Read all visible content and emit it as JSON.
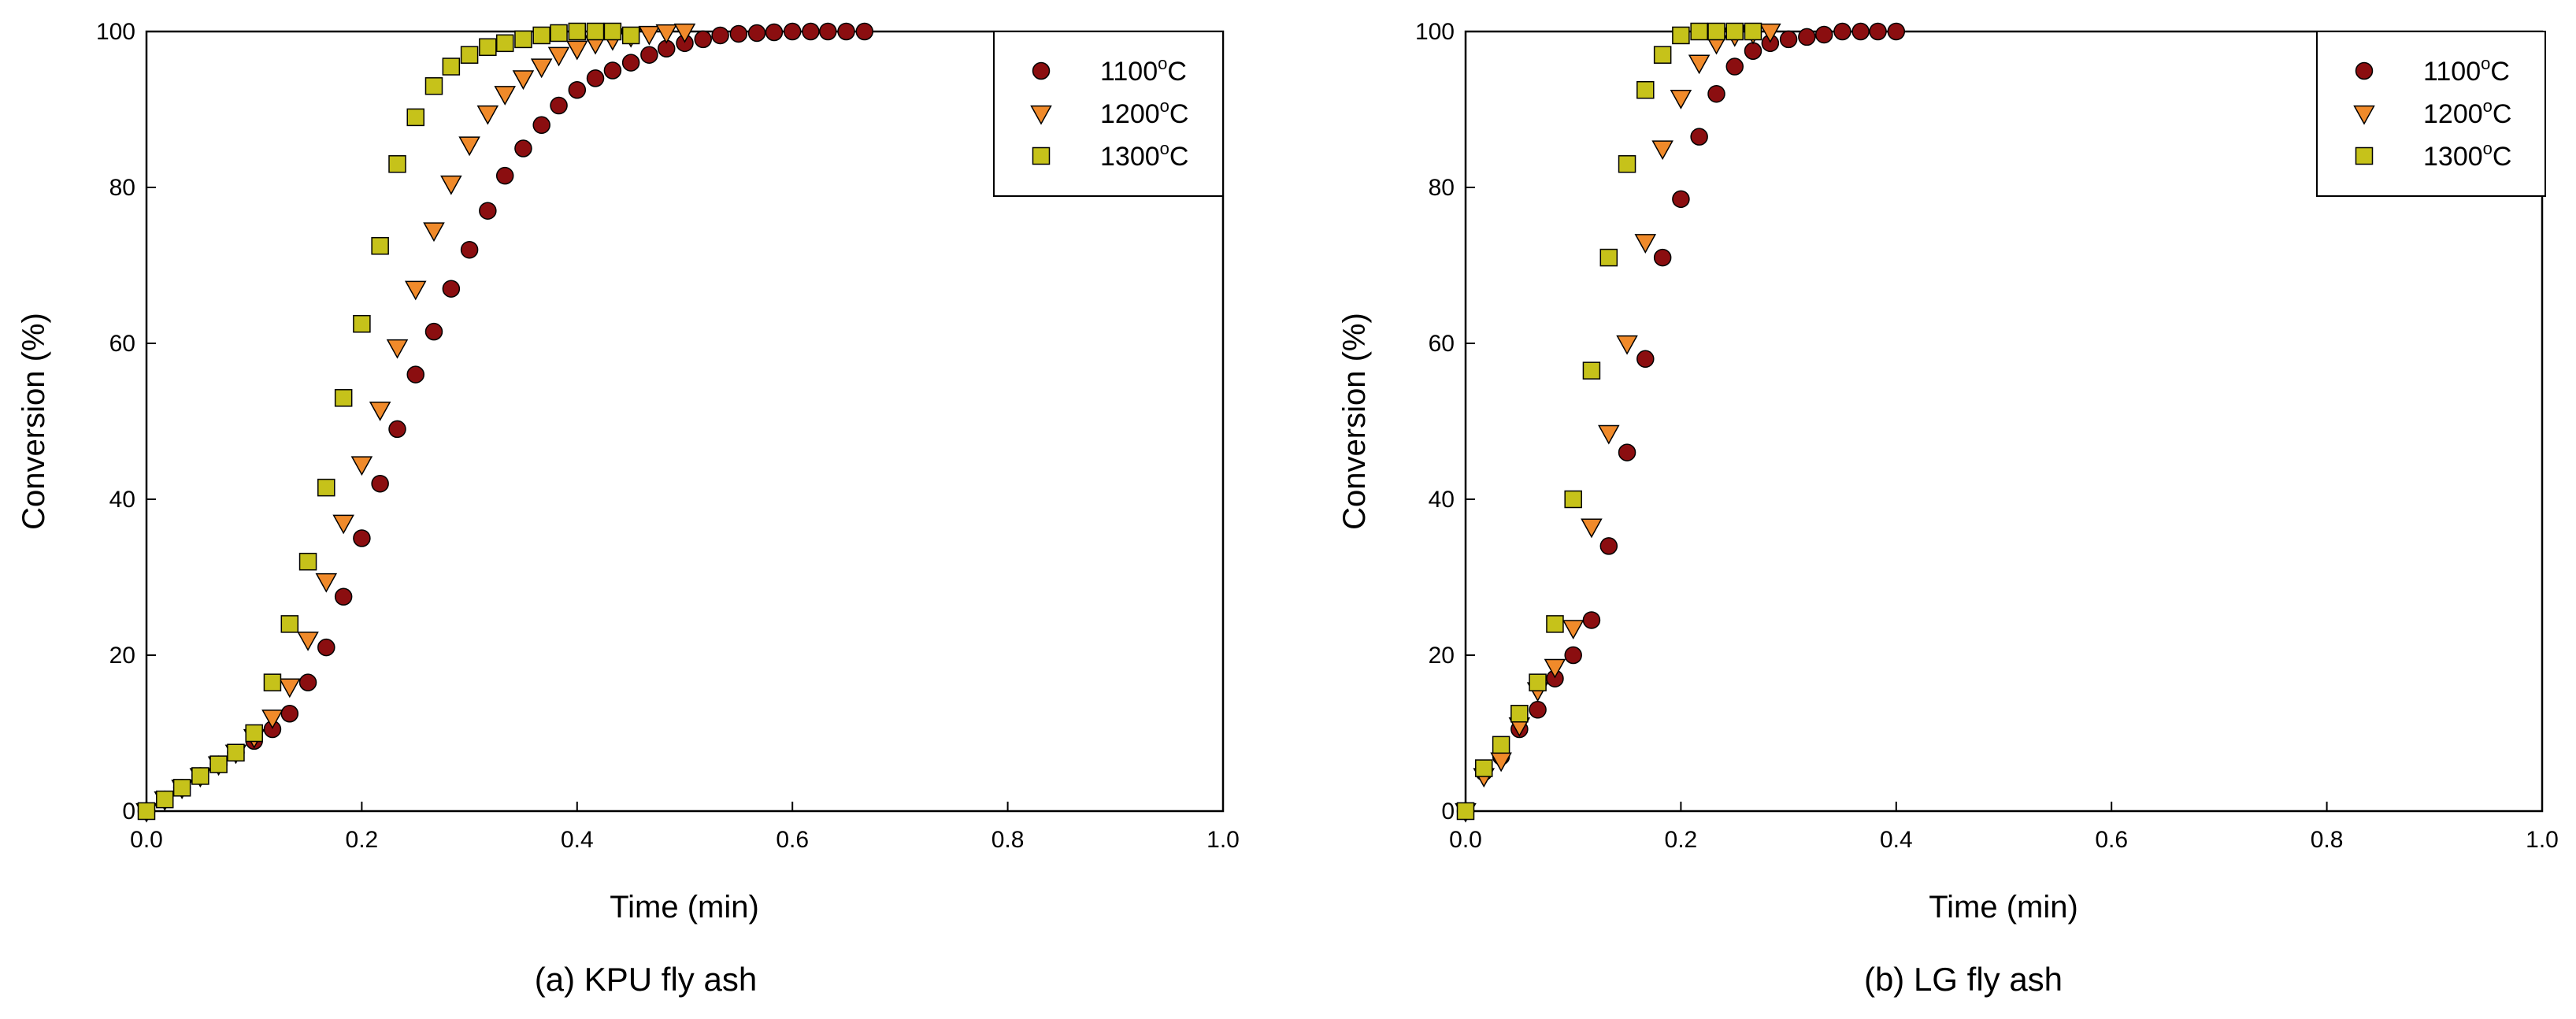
{
  "colors": {
    "1100": "#8b0e10",
    "1200": "#f08a2a",
    "1300": "#c6c21a",
    "stroke": "#000000"
  },
  "chart_data": [
    {
      "type": "scatter",
      "caption": "(a) KPU fly ash",
      "xlabel": "Time (min)",
      "ylabel": "Conversion (%)",
      "xlim": [
        0.0,
        1.0
      ],
      "ylim": [
        0,
        100
      ],
      "xticks": [
        "0.0",
        "0.2",
        "0.4",
        "0.6",
        "0.8",
        "1.0"
      ],
      "yticks": [
        "0",
        "20",
        "40",
        "60",
        "80",
        "100"
      ],
      "legend_position": "top-right",
      "series": [
        {
          "name": "1100",
          "label_prefix": "1100",
          "label_sup": "o",
          "label_suffix": "C",
          "marker": "circle",
          "color_key": "1100",
          "x": [
            0,
            0.017,
            0.033,
            0.05,
            0.067,
            0.083,
            0.1,
            0.117,
            0.133,
            0.15,
            0.167,
            0.183,
            0.2,
            0.217,
            0.233,
            0.25,
            0.267,
            0.283,
            0.3,
            0.317,
            0.333,
            0.35,
            0.367,
            0.383,
            0.4,
            0.417,
            0.433,
            0.45,
            0.467,
            0.483,
            0.5,
            0.517,
            0.533,
            0.55,
            0.567,
            0.583,
            0.6,
            0.617,
            0.633,
            0.65,
            0.667
          ],
          "y": [
            0,
            1.5,
            3,
            4.5,
            6,
            7.5,
            9,
            10.5,
            12.5,
            16.5,
            21,
            27.5,
            35,
            42,
            49,
            56,
            61.5,
            67,
            72,
            77,
            81.5,
            85,
            88,
            90.5,
            92.5,
            94,
            95,
            96,
            97,
            97.8,
            98.5,
            99,
            99.5,
            99.7,
            99.8,
            99.9,
            100,
            100,
            100,
            100,
            100
          ]
        },
        {
          "name": "1200",
          "label_prefix": "1200",
          "label_sup": "o",
          "label_suffix": "C",
          "marker": "triangle-down",
          "color_key": "1200",
          "x": [
            0,
            0.017,
            0.033,
            0.05,
            0.067,
            0.083,
            0.1,
            0.117,
            0.133,
            0.15,
            0.167,
            0.183,
            0.2,
            0.217,
            0.233,
            0.25,
            0.267,
            0.283,
            0.3,
            0.317,
            0.333,
            0.35,
            0.367,
            0.383,
            0.4,
            0.417,
            0.433,
            0.45,
            0.467,
            0.483,
            0.5
          ],
          "y": [
            0,
            1.5,
            3,
            4.5,
            6,
            7.5,
            9.5,
            12,
            16,
            22,
            29.5,
            37,
            44.5,
            51.5,
            59.5,
            67,
            74.5,
            80.5,
            85.5,
            89.5,
            92,
            94,
            95.5,
            97,
            97.8,
            98.5,
            99,
            99.4,
            99.7,
            99.9,
            100
          ]
        },
        {
          "name": "1300",
          "label_prefix": "1300",
          "label_sup": "o",
          "label_suffix": "C",
          "marker": "square",
          "color_key": "1300",
          "x": [
            0,
            0.017,
            0.033,
            0.05,
            0.067,
            0.083,
            0.1,
            0.117,
            0.133,
            0.15,
            0.167,
            0.183,
            0.2,
            0.217,
            0.233,
            0.25,
            0.267,
            0.283,
            0.3,
            0.317,
            0.333,
            0.35,
            0.367,
            0.383,
            0.4,
            0.417,
            0.433,
            0.45
          ],
          "y": [
            0,
            1.5,
            3,
            4.5,
            6,
            7.5,
            10,
            16.5,
            24,
            32,
            41.5,
            53,
            62.5,
            72.5,
            83,
            89,
            93,
            95.5,
            97,
            98,
            98.5,
            99,
            99.5,
            99.8,
            100,
            100,
            100,
            99.5
          ]
        }
      ]
    },
    {
      "type": "scatter",
      "caption": "(b) LG fly ash",
      "xlabel": "Time (min)",
      "ylabel": "Conversion (%)",
      "xlim": [
        0.0,
        1.0
      ],
      "ylim": [
        0,
        100
      ],
      "xticks": [
        "0.0",
        "0.2",
        "0.4",
        "0.6",
        "0.8",
        "1.0"
      ],
      "yticks": [
        "0",
        "20",
        "40",
        "60",
        "80",
        "100"
      ],
      "legend_position": "top-right",
      "series": [
        {
          "name": "1100",
          "label_prefix": "1100",
          "label_sup": "o",
          "label_suffix": "C",
          "marker": "circle",
          "color_key": "1100",
          "x": [
            0,
            0.017,
            0.033,
            0.05,
            0.067,
            0.083,
            0.1,
            0.117,
            0.133,
            0.15,
            0.167,
            0.183,
            0.2,
            0.217,
            0.233,
            0.25,
            0.267,
            0.283,
            0.3,
            0.317,
            0.333,
            0.35,
            0.367,
            0.383,
            0.4
          ],
          "y": [
            0,
            5,
            7,
            10.5,
            13,
            17,
            20,
            24.5,
            34,
            46,
            58,
            71,
            78.5,
            86.5,
            92,
            95.5,
            97.5,
            98.5,
            99,
            99.3,
            99.6,
            100,
            100,
            100,
            100
          ]
        },
        {
          "name": "1200",
          "label_prefix": "1200",
          "label_sup": "o",
          "label_suffix": "C",
          "marker": "triangle-down",
          "color_key": "1200",
          "x": [
            0,
            0.017,
            0.033,
            0.05,
            0.067,
            0.083,
            0.1,
            0.117,
            0.133,
            0.15,
            0.167,
            0.183,
            0.2,
            0.217,
            0.233,
            0.25,
            0.267,
            0.283
          ],
          "y": [
            0,
            4.5,
            6.5,
            11,
            15.5,
            18.5,
            23.5,
            36.5,
            48.5,
            60,
            73,
            85,
            91.5,
            96,
            98.5,
            99.5,
            99.8,
            100
          ]
        },
        {
          "name": "1300",
          "label_prefix": "1300",
          "label_sup": "o",
          "label_suffix": "C",
          "marker": "square",
          "color_key": "1300",
          "x": [
            0,
            0.017,
            0.033,
            0.05,
            0.067,
            0.083,
            0.1,
            0.117,
            0.133,
            0.15,
            0.167,
            0.183,
            0.2,
            0.217,
            0.233,
            0.25,
            0.267
          ],
          "y": [
            0,
            5.5,
            8.5,
            12.5,
            16.5,
            24,
            40,
            56.5,
            71,
            83,
            92.5,
            97,
            99.5,
            100,
            100,
            100,
            100
          ]
        }
      ]
    }
  ]
}
